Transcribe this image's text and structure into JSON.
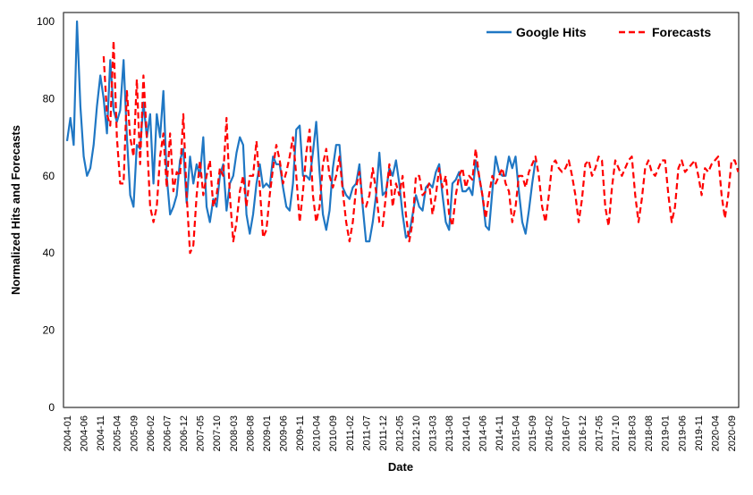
{
  "chart_data": {
    "type": "line",
    "title": "",
    "xlabel": "Date",
    "ylabel": "Normalized Hits and Forecasts",
    "ylim": [
      0,
      100
    ],
    "yticks": [
      0,
      20,
      40,
      60,
      80,
      100
    ],
    "xticks": [
      "2004-01",
      "2004-06",
      "2004-11",
      "2005-04",
      "2005-09",
      "2006-02",
      "2006-07",
      "2006-12",
      "2007-05",
      "2007-10",
      "2008-03",
      "2008-08",
      "2009-01",
      "2009-06",
      "2009-11",
      "2010-04",
      "2010-09",
      "2011-02",
      "2011-07",
      "2011-12",
      "2012-05",
      "2012-10",
      "2013-03",
      "2013-08",
      "2014-01",
      "2014-06",
      "2014-11",
      "2015-04",
      "2015-09",
      "2016-02",
      "2016-07",
      "2016-12",
      "2017-05",
      "2017-10",
      "2018-03",
      "2018-08",
      "2019-01",
      "2019-06",
      "2019-11",
      "2020-04",
      "2020-09"
    ],
    "x_start": "2004-01",
    "x_months": 204,
    "grid": false,
    "legend_position": "top-right",
    "series": [
      {
        "name": "Google Hits",
        "color": "#1f77c4",
        "style": "solid",
        "start": "2004-01",
        "values": [
          69,
          75,
          68,
          100,
          78,
          65,
          60,
          62,
          68,
          78,
          86,
          80,
          71,
          90,
          77,
          74,
          77,
          90,
          70,
          55,
          52,
          68,
          67,
          79,
          70,
          76,
          58,
          76,
          70,
          82,
          60,
          50,
          52,
          55,
          64,
          67,
          53,
          65,
          58,
          63,
          60,
          70,
          52,
          48,
          54,
          52,
          60,
          63,
          51,
          58,
          60,
          66,
          70,
          68,
          50,
          45,
          50,
          58,
          63,
          57,
          58,
          57,
          65,
          63,
          63,
          57,
          52,
          51,
          58,
          72,
          73,
          60,
          60,
          59,
          66,
          74,
          61,
          50,
          46,
          51,
          62,
          68,
          68,
          57,
          55,
          54,
          57,
          58,
          63,
          52,
          43,
          43,
          48,
          55,
          66,
          55,
          56,
          62,
          60,
          64,
          58,
          50,
          44,
          45,
          50,
          55,
          52,
          51,
          57,
          58,
          57,
          61,
          63,
          55,
          48,
          46,
          58,
          59,
          61,
          56,
          56,
          57,
          55,
          64,
          60,
          55,
          47,
          46,
          56,
          65,
          61,
          60,
          60,
          65,
          62,
          65,
          56,
          48,
          45,
          51,
          58,
          64
        ]
      },
      {
        "name": "Forecasts",
        "color": "#ff0000",
        "style": "dashed",
        "start": "2004-12",
        "values": [
          91,
          76,
          73,
          95,
          70,
          58,
          58,
          82,
          70,
          65,
          85,
          63,
          86,
          70,
          52,
          48,
          52,
          65,
          71,
          57,
          71,
          56,
          61,
          60,
          76,
          55,
          40,
          42,
          55,
          64,
          55,
          60,
          64,
          52,
          55,
          62,
          60,
          75,
          55,
          43,
          48,
          56,
          60,
          52,
          60,
          60,
          69,
          57,
          44,
          46,
          55,
          62,
          68,
          64,
          58,
          61,
          65,
          70,
          60,
          48,
          56,
          66,
          72,
          55,
          48,
          52,
          63,
          67,
          60,
          57,
          60,
          65,
          56,
          48,
          43,
          48,
          57,
          61,
          53,
          52,
          55,
          62,
          56,
          48,
          47,
          55,
          63,
          52,
          58,
          55,
          60,
          50,
          43,
          48,
          60,
          60,
          55,
          56,
          58,
          50,
          55,
          62,
          57,
          60,
          50,
          47,
          55,
          60,
          62,
          57,
          60,
          59,
          67,
          60,
          55,
          49,
          55,
          60,
          58,
          60,
          62,
          58,
          56,
          48,
          52,
          60,
          60,
          57,
          61,
          63,
          65,
          60,
          52,
          48,
          55,
          63,
          64,
          62,
          61,
          62,
          64,
          60,
          55,
          48,
          54,
          63,
          64,
          60,
          62,
          65,
          64,
          52,
          47,
          57,
          64,
          62,
          60,
          62,
          64,
          65,
          55,
          48,
          54,
          62,
          64,
          61,
          60,
          62,
          64,
          64,
          55,
          48,
          52,
          62,
          64,
          61,
          62,
          63,
          64,
          60,
          55,
          62,
          61,
          63,
          64,
          65,
          55,
          49,
          55,
          64,
          64,
          61
        ]
      }
    ]
  }
}
